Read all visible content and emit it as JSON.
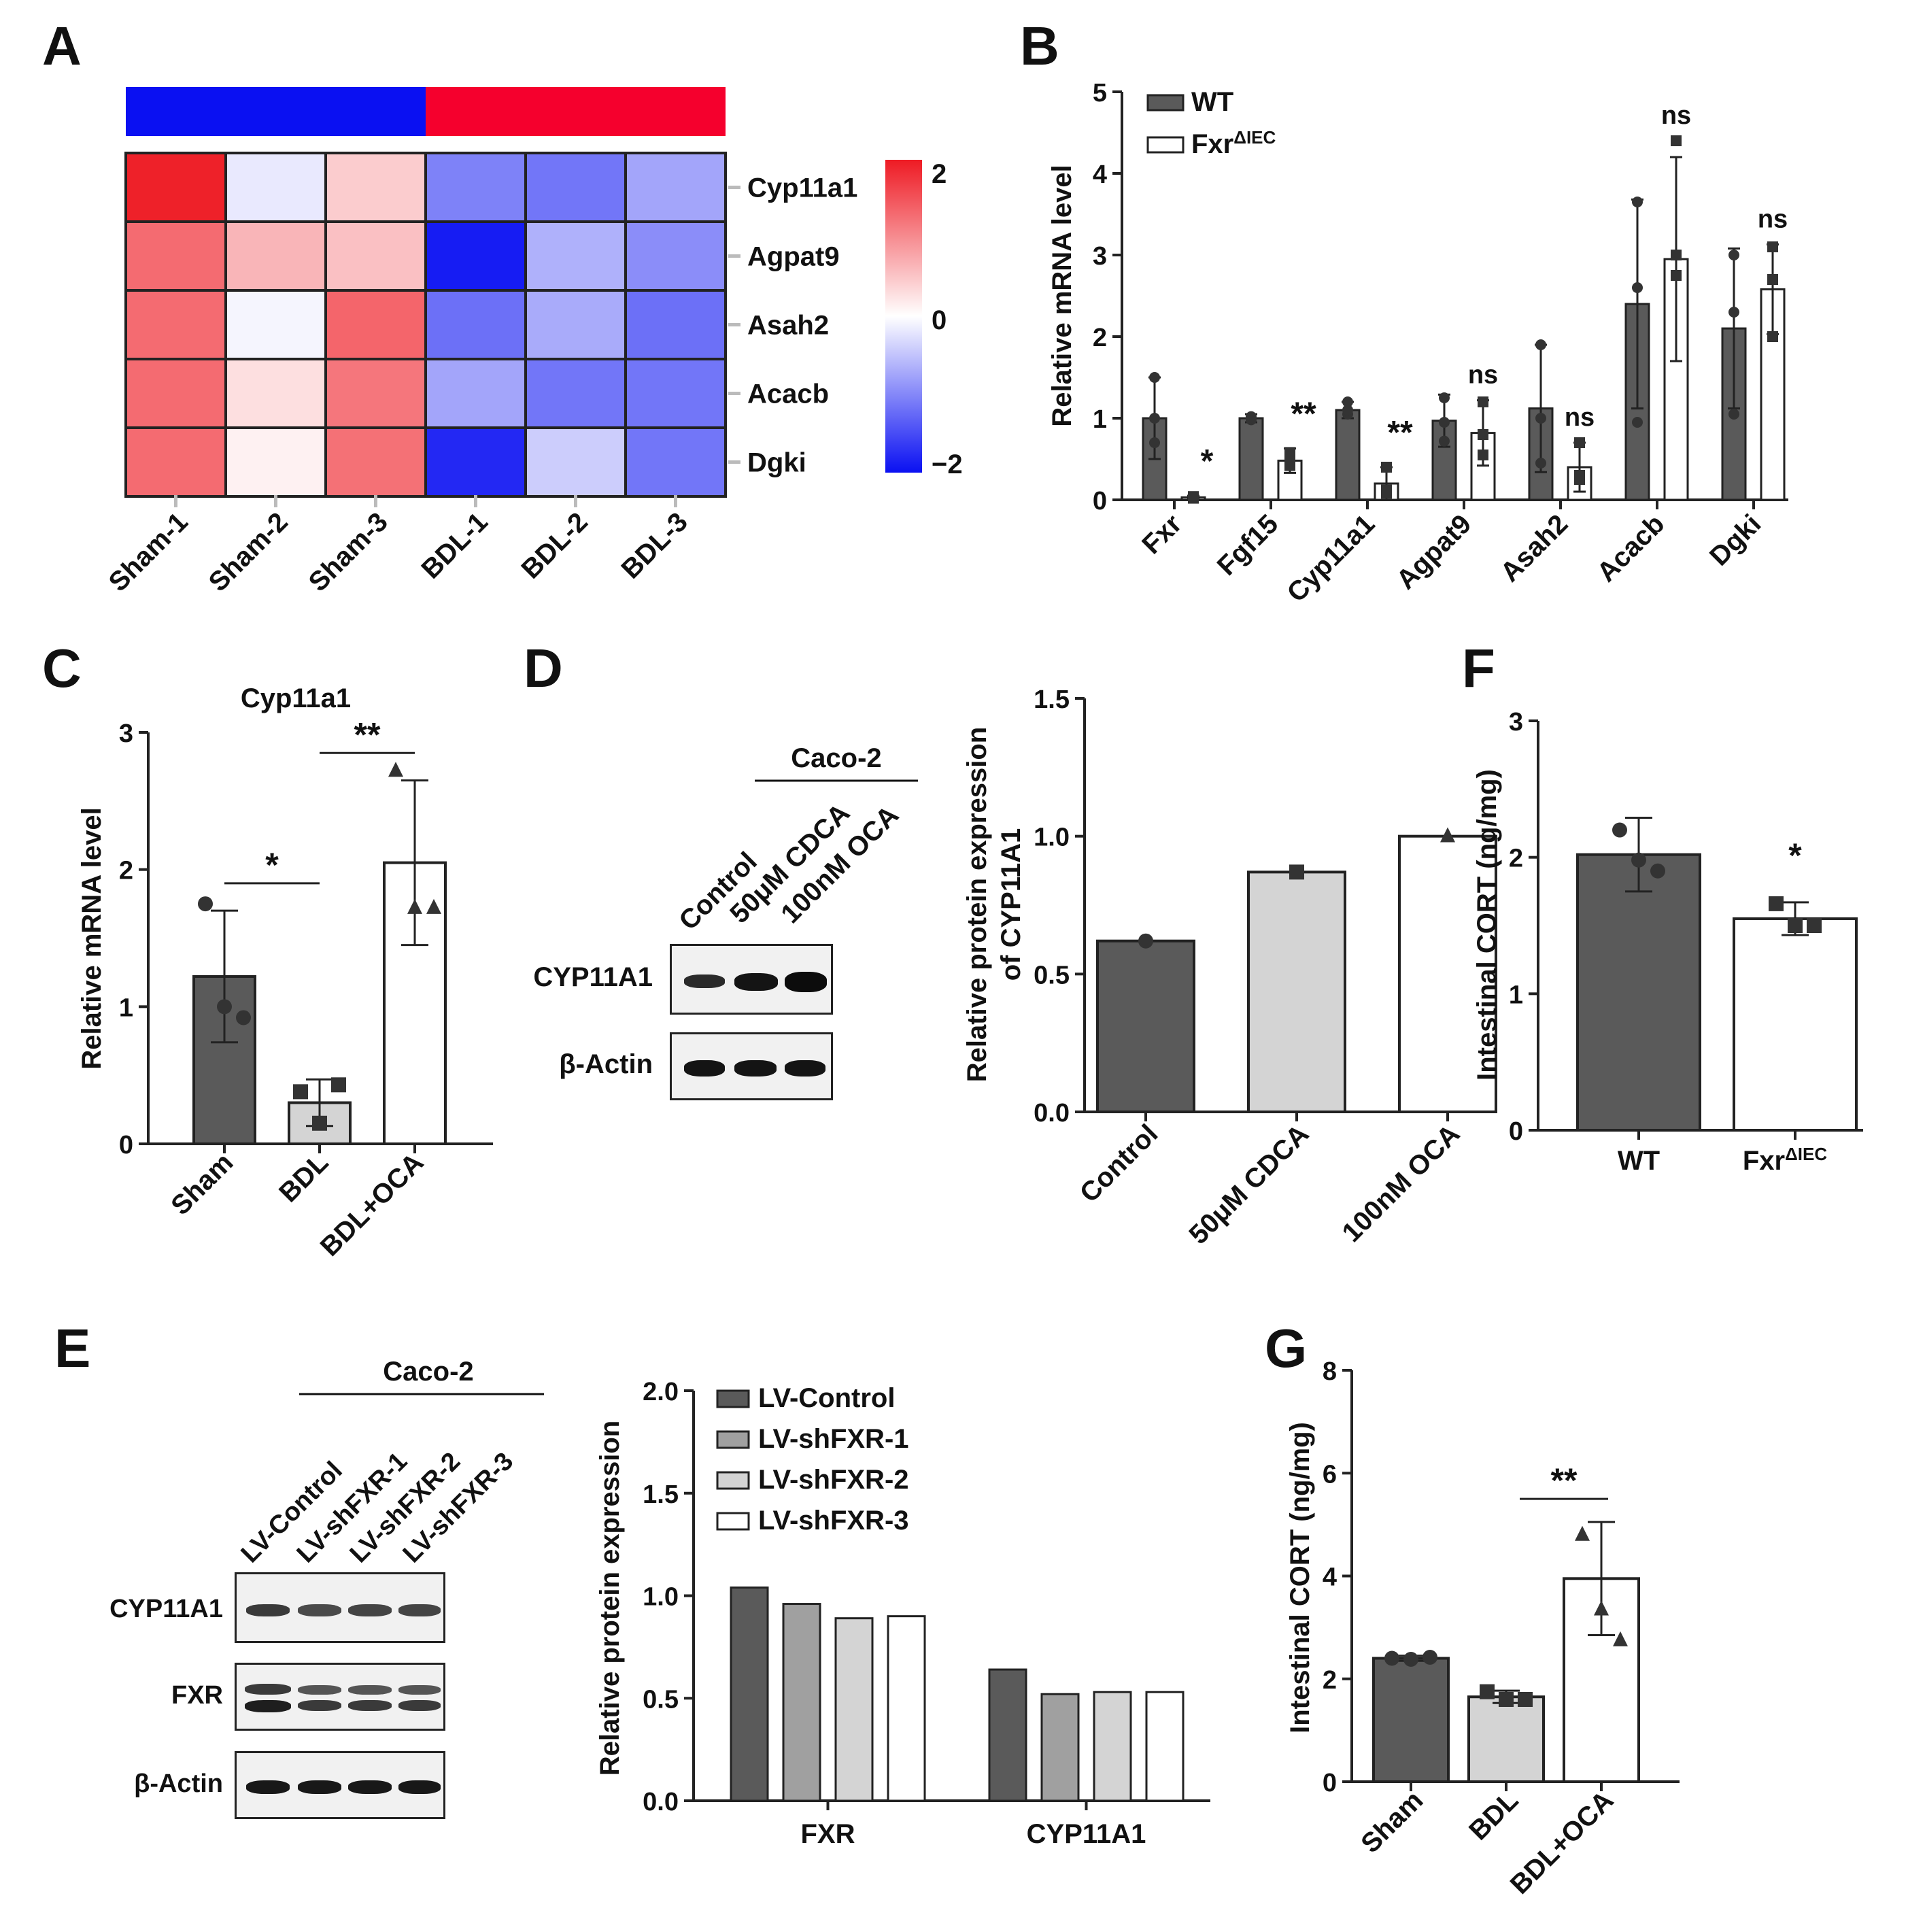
{
  "panels": {
    "A": {
      "letter": "A",
      "groups": [
        {
          "name": "Sham",
          "color": "#0a10f2"
        },
        {
          "name": "BDL",
          "color": "#f5002d"
        }
      ],
      "samples": [
        "Sham-1",
        "Sham-2",
        "Sham-3",
        "BDL-1",
        "BDL-2",
        "BDL-3"
      ],
      "genes": [
        "Cyp11a1",
        "Agpat9",
        "Asah2",
        "Acacb",
        "Dgki"
      ],
      "matrix": [
        [
          1.95,
          -0.18,
          0.45,
          -1.05,
          -1.15,
          -0.75
        ],
        [
          1.3,
          0.65,
          0.55,
          -1.9,
          -0.65,
          -0.95
        ],
        [
          1.3,
          -0.08,
          1.35,
          -1.2,
          -0.7,
          -1.2
        ],
        [
          1.3,
          0.28,
          1.2,
          -0.75,
          -1.15,
          -1.15
        ],
        [
          1.3,
          0.12,
          1.25,
          -1.8,
          -0.42,
          -1.15
        ]
      ],
      "scale": {
        "max": 2,
        "mid": 0,
        "min": -2,
        "labels": [
          "2",
          "0",
          "−2"
        ],
        "colors": {
          "high": "#ee1b24",
          "mid": "#ffffff",
          "low": "#0a10f2"
        }
      }
    },
    "B": {
      "letter": "B",
      "ylabel": "Relative mRNA level",
      "yticks": [
        "0",
        "1",
        "2",
        "3",
        "4",
        "5"
      ],
      "ylim": [
        0,
        5
      ],
      "legend": {
        "wt": "WT",
        "ko": "Fxr",
        "ko_sup": "ΔIEC"
      },
      "categories": [
        "Fxr",
        "Fgf15",
        "Cyp11a1",
        "Agpat9",
        "Asah2",
        "Acacb",
        "Dgki"
      ],
      "wt": [
        1.0,
        1.0,
        1.1,
        0.97,
        1.12,
        2.4,
        2.1
      ],
      "wt_sd": [
        0.5,
        0.05,
        0.1,
        0.32,
        0.78,
        1.28,
        0.98
      ],
      "ko": [
        0.03,
        0.48,
        0.2,
        0.82,
        0.4,
        2.95,
        2.58
      ],
      "ko_sd": [
        0.02,
        0.15,
        0.2,
        0.4,
        0.3,
        1.25,
        0.55
      ],
      "wt_points": [
        [
          1.5,
          0.7,
          1.0
        ],
        [
          1.02,
          0.98,
          1.0
        ],
        [
          1.2,
          1.05,
          1.1
        ],
        [
          1.25,
          0.72,
          0.95
        ],
        [
          1.9,
          0.45,
          1.0
        ],
        [
          3.65,
          0.95,
          2.6
        ],
        [
          3.0,
          1.05,
          2.3
        ]
      ],
      "ko_points": [
        [
          0.03,
          0.02,
          0.04
        ],
        [
          0.58,
          0.42,
          0.5
        ],
        [
          0.4,
          0.12,
          0.08
        ],
        [
          1.2,
          0.55,
          0.8
        ],
        [
          0.7,
          0.25,
          0.3
        ],
        [
          4.4,
          2.75,
          3.0
        ],
        [
          3.1,
          2.0,
          2.7
        ]
      ],
      "sig": [
        "*",
        "**",
        "**",
        "ns",
        "ns",
        "ns",
        "ns"
      ]
    },
    "C": {
      "letter": "C",
      "title": "Cyp11a1",
      "ylabel": "Relative mRNA level",
      "yticks": [
        "0",
        "1",
        "2",
        "3"
      ],
      "ylim": [
        0,
        3
      ],
      "categories": [
        "Sham",
        "BDL",
        "BDL+OCA"
      ],
      "values": [
        1.22,
        0.3,
        2.05
      ],
      "sd": [
        0.48,
        0.17,
        0.6
      ],
      "points": [
        [
          1.75,
          1.0,
          0.92
        ],
        [
          0.38,
          0.15,
          0.43
        ],
        [
          2.72,
          1.72,
          1.72
        ]
      ],
      "colors": [
        "#5a5a5a",
        "#d4d4d4",
        "#ffffff"
      ],
      "sig": [
        {
          "from": 0,
          "to": 1,
          "y": 1.9,
          "label": "*"
        },
        {
          "from": 1,
          "to": 2,
          "y": 2.85,
          "label": "**"
        }
      ]
    },
    "D": {
      "letter": "D",
      "blot_header": "Caco-2",
      "lanes": [
        "Control",
        "50μM CDCA",
        "100nM OCA"
      ],
      "rows": [
        "CYP11A1",
        "β-Actin"
      ],
      "ylabel_1": "Relative protein expression",
      "ylabel_2": "of CYP11A1",
      "yticks": [
        "0.0",
        "0.5",
        "1.0",
        "1.5"
      ],
      "ylim": [
        0,
        1.5
      ],
      "categories": [
        "Control",
        "50μM CDCA",
        "100nM OCA"
      ],
      "values": [
        0.62,
        0.87,
        1.0
      ],
      "colors": [
        "#5a5a5a",
        "#d4d4d4",
        "#ffffff"
      ]
    },
    "E": {
      "letter": "E",
      "blot_header": "Caco-2",
      "lanes": [
        "LV-Control",
        "LV-shFXR-1",
        "LV-shFXR-2",
        "LV-shFXR-3"
      ],
      "rows": [
        "CYP11A1",
        "FXR",
        "β-Actin"
      ],
      "ylabel": "Relative protein expression",
      "yticks": [
        "0.0",
        "0.5",
        "1.0",
        "1.5",
        "2.0"
      ],
      "ylim": [
        0,
        2
      ],
      "groups": [
        "FXR",
        "CYP11A1"
      ],
      "series": [
        {
          "name": "LV-Control",
          "color": "#5a5a5a",
          "values": [
            1.04,
            0.64
          ]
        },
        {
          "name": "LV-shFXR-1",
          "color": "#a0a0a0",
          "values": [
            0.96,
            0.52
          ]
        },
        {
          "name": "LV-shFXR-2",
          "color": "#d4d4d4",
          "values": [
            0.89,
            0.53
          ]
        },
        {
          "name": "LV-shFXR-3",
          "color": "#ffffff",
          "values": [
            0.9,
            0.53
          ]
        }
      ]
    },
    "F": {
      "letter": "F",
      "ylabel": "Intestinal CORT (ng/mg)",
      "yticks": [
        "0",
        "1",
        "2",
        "3"
      ],
      "ylim": [
        0,
        3
      ],
      "categories": [
        "WT",
        "Fxr"
      ],
      "cat_sup": "ΔIEC",
      "values": [
        2.02,
        1.55
      ],
      "sd": [
        0.27,
        0.12
      ],
      "points": [
        [
          2.2,
          1.98,
          1.9
        ],
        [
          1.66,
          1.5,
          1.5
        ]
      ],
      "colors": [
        "#5a5a5a",
        "#ffffff"
      ],
      "sig": "*"
    },
    "G": {
      "letter": "G",
      "ylabel": "Intestinal CORT (ng/mg)",
      "yticks": [
        "0",
        "2",
        "4",
        "6",
        "8"
      ],
      "ylim": [
        0,
        8
      ],
      "categories": [
        "Sham",
        "BDL",
        "BDL+OCA"
      ],
      "values": [
        2.4,
        1.65,
        3.95
      ],
      "sd": [
        0.05,
        0.12,
        1.1
      ],
      "points": [
        [
          2.4,
          2.38,
          2.42
        ],
        [
          1.75,
          1.6,
          1.6
        ],
        [
          4.8,
          3.35,
          2.75
        ]
      ],
      "colors": [
        "#5a5a5a",
        "#d4d4d4",
        "#ffffff"
      ],
      "sig": {
        "from": 1,
        "to": 2,
        "y": 5.5,
        "label": "**"
      }
    }
  },
  "chart_data": [
    {
      "panel": "A",
      "type": "heatmap",
      "rows": [
        "Cyp11a1",
        "Agpat9",
        "Asah2",
        "Acacb",
        "Dgki"
      ],
      "columns": [
        "Sham-1",
        "Sham-2",
        "Sham-3",
        "BDL-1",
        "BDL-2",
        "BDL-3"
      ],
      "zlim": [
        -2,
        2
      ]
    },
    {
      "panel": "B",
      "type": "bar",
      "ylabel": "Relative mRNA level",
      "categories": [
        "Fxr",
        "Fgf15",
        "Cyp11a1",
        "Agpat9",
        "Asah2",
        "Acacb",
        "Dgki"
      ],
      "series": [
        {
          "name": "WT",
          "values": [
            1.0,
            1.0,
            1.1,
            0.97,
            1.12,
            2.4,
            2.1
          ]
        },
        {
          "name": "FxrΔIEC",
          "values": [
            0.03,
            0.48,
            0.2,
            0.82,
            0.4,
            2.95,
            2.58
          ]
        }
      ],
      "ylim": [
        0,
        5
      ]
    },
    {
      "panel": "C",
      "type": "bar",
      "title": "Cyp11a1",
      "ylabel": "Relative mRNA level",
      "categories": [
        "Sham",
        "BDL",
        "BDL+OCA"
      ],
      "values": [
        1.22,
        0.3,
        2.05
      ],
      "ylim": [
        0,
        3
      ]
    },
    {
      "panel": "D",
      "type": "bar",
      "ylabel": "Relative protein expression of CYP11A1",
      "categories": [
        "Control",
        "50μM CDCA",
        "100nM OCA"
      ],
      "values": [
        0.62,
        0.87,
        1.0
      ],
      "ylim": [
        0,
        1.5
      ]
    },
    {
      "panel": "E",
      "type": "bar",
      "ylabel": "Relative protein expression",
      "categories": [
        "FXR",
        "CYP11A1"
      ],
      "series": [
        {
          "name": "LV-Control",
          "values": [
            1.04,
            0.64
          ]
        },
        {
          "name": "LV-shFXR-1",
          "values": [
            0.96,
            0.52
          ]
        },
        {
          "name": "LV-shFXR-2",
          "values": [
            0.89,
            0.53
          ]
        },
        {
          "name": "LV-shFXR-3",
          "values": [
            0.9,
            0.53
          ]
        }
      ],
      "ylim": [
        0,
        2
      ]
    },
    {
      "panel": "F",
      "type": "bar",
      "ylabel": "Intestinal CORT (ng/mg)",
      "categories": [
        "WT",
        "FxrΔIEC"
      ],
      "values": [
        2.02,
        1.55
      ],
      "ylim": [
        0,
        3
      ]
    },
    {
      "panel": "G",
      "type": "bar",
      "ylabel": "Intestinal CORT (ng/mg)",
      "categories": [
        "Sham",
        "BDL",
        "BDL+OCA"
      ],
      "values": [
        2.4,
        1.65,
        3.95
      ],
      "ylim": [
        0,
        8
      ]
    }
  ]
}
